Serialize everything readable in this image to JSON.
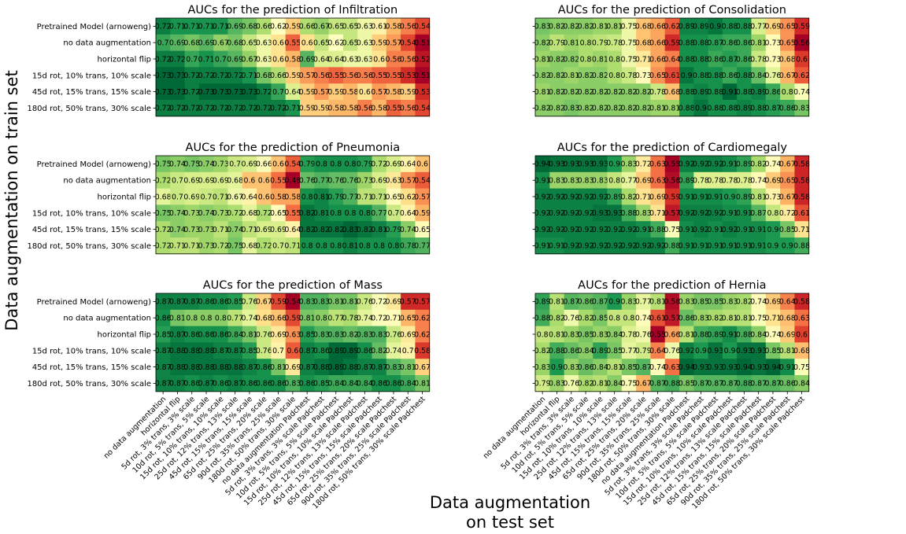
{
  "chart_data": {
    "type": "heatmap",
    "xlabel_lines": [
      "Data augmentation",
      "on test set"
    ],
    "ylabel": "Data augmentation on train set",
    "rows": [
      "Pretrained Model (arnoweng)",
      "no data augmentation",
      "horizontal flip",
      "15d rot, 10% trans, 10% scale",
      "45d rot, 15% trans, 15% scale",
      "180d rot, 50% trans, 30% scale"
    ],
    "columns": [
      "no data augmentation",
      "horizontal flip",
      "5d rot, 3% trans, 3% scale",
      "10d rot, 5% trans, 5% scale",
      "15d rot, 10% trans, 10% scale",
      "25d rot, 12% trans, 13% scale",
      "45d rot, 15% trans, 15% scale",
      "65d rot, 25% trans, 20% scale",
      "90d rot, 35% trans, 25% scale",
      "180d rot, 50% trans, 30% scale",
      "no data augmentation Padchest",
      "5d rot, 3% trans, 3% scale Padchest",
      "10d rot, 5% trans, 5% scale Padchest",
      "15d rot, 10% trans, 10% scale Padchest",
      "25d rot, 12% trans, 13% scale Padchest",
      "45d rot, 15% trans, 15% scale Padchest",
      "65d rot, 25% trans, 20% scale Padchest",
      "90d rot, 35% trans, 25% scale Padchest",
      "180d rot, 50% trans, 30% scale Padchest"
    ],
    "colormap": {
      "low": "#a50026",
      "mid": "#ffffbf",
      "high": "#006837"
    },
    "panels": [
      {
        "title": "AUCs for the prediction of Infiltration",
        "values": [
          [
            0.72,
            0.71,
            0.71,
            0.71,
            0.71,
            0.69,
            0.68,
            0.66,
            0.62,
            0.59,
            0.66,
            0.67,
            0.65,
            0.65,
            0.63,
            0.61,
            0.58,
            0.56,
            0.54
          ],
          [
            0.7,
            0.69,
            0.68,
            0.69,
            0.67,
            0.68,
            0.65,
            0.63,
            0.6,
            0.55,
            0.6,
            0.65,
            0.62,
            0.65,
            0.63,
            0.59,
            0.57,
            0.54,
            0.51
          ],
          [
            0.72,
            0.72,
            0.7,
            0.71,
            0.7,
            0.69,
            0.67,
            0.63,
            0.6,
            0.58,
            0.69,
            0.64,
            0.64,
            0.63,
            0.63,
            0.6,
            0.56,
            0.56,
            0.52
          ],
          [
            0.73,
            0.73,
            0.72,
            0.72,
            0.72,
            0.72,
            0.71,
            0.68,
            0.66,
            0.59,
            0.57,
            0.56,
            0.55,
            0.56,
            0.56,
            0.55,
            0.55,
            0.53,
            0.51
          ],
          [
            0.73,
            0.73,
            0.72,
            0.73,
            0.73,
            0.73,
            0.73,
            0.72,
            0.7,
            0.64,
            0.59,
            0.57,
            0.59,
            0.58,
            0.6,
            0.57,
            0.58,
            0.59,
            0.53
          ],
          [
            0.72,
            0.72,
            0.72,
            0.72,
            0.72,
            0.72,
            0.72,
            0.72,
            0.72,
            0.71,
            0.59,
            0.59,
            0.58,
            0.58,
            0.56,
            0.58,
            0.55,
            0.56,
            0.54
          ]
        ]
      },
      {
        "title": "AUCs for the prediction of Consolidation",
        "values": [
          [
            0.83,
            0.82,
            0.82,
            0.82,
            0.81,
            0.81,
            0.75,
            0.68,
            0.66,
            0.62,
            0.89,
            0.89,
            0.9,
            0.88,
            0.88,
            0.77,
            0.69,
            0.65,
            0.59
          ],
          [
            0.82,
            0.79,
            0.81,
            0.8,
            0.79,
            0.78,
            0.75,
            0.68,
            0.66,
            0.59,
            0.88,
            0.88,
            0.87,
            0.86,
            0.86,
            0.81,
            0.73,
            0.65,
            0.56
          ],
          [
            0.81,
            0.82,
            0.82,
            0.8,
            0.81,
            0.8,
            0.75,
            0.71,
            0.66,
            0.64,
            0.88,
            0.88,
            0.86,
            0.87,
            0.86,
            0.78,
            0.73,
            0.68,
            0.6
          ],
          [
            0.82,
            0.82,
            0.81,
            0.82,
            0.82,
            0.8,
            0.78,
            0.73,
            0.65,
            0.61,
            0.9,
            0.88,
            0.88,
            0.86,
            0.88,
            0.84,
            0.76,
            0.67,
            0.62
          ],
          [
            0.81,
            0.82,
            0.82,
            0.82,
            0.82,
            0.82,
            0.82,
            0.82,
            0.78,
            0.68,
            0.88,
            0.89,
            0.88,
            0.91,
            0.88,
            0.89,
            0.86,
            0.8,
            0.74
          ],
          [
            0.82,
            0.82,
            0.83,
            0.82,
            0.82,
            0.82,
            0.82,
            0.82,
            0.81,
            0.81,
            0.88,
            0.9,
            0.88,
            0.88,
            0.89,
            0.88,
            0.87,
            0.86,
            0.83
          ]
        ]
      },
      {
        "title": "AUCs for the prediction of Pneumonia",
        "values": [
          [
            0.75,
            0.74,
            0.75,
            0.74,
            0.73,
            0.7,
            0.69,
            0.66,
            0.6,
            0.54,
            0.79,
            0.8,
            0.8,
            0.8,
            0.79,
            0.72,
            0.69,
            0.64,
            0.6
          ],
          [
            0.72,
            0.7,
            0.69,
            0.69,
            0.69,
            0.68,
            0.6,
            0.6,
            0.55,
            0.48,
            0.76,
            0.77,
            0.76,
            0.76,
            0.73,
            0.69,
            0.63,
            0.57,
            0.54
          ],
          [
            0.68,
            0.7,
            0.69,
            0.7,
            0.71,
            0.67,
            0.64,
            0.6,
            0.58,
            0.58,
            0.8,
            0.81,
            0.79,
            0.77,
            0.71,
            0.71,
            0.65,
            0.62,
            0.57
          ],
          [
            0.75,
            0.74,
            0.73,
            0.74,
            0.73,
            0.72,
            0.68,
            0.72,
            0.65,
            0.55,
            0.82,
            0.81,
            0.8,
            0.8,
            0.8,
            0.77,
            0.7,
            0.64,
            0.59
          ],
          [
            0.72,
            0.74,
            0.73,
            0.73,
            0.71,
            0.74,
            0.71,
            0.69,
            0.69,
            0.64,
            0.82,
            0.82,
            0.82,
            0.83,
            0.82,
            0.81,
            0.79,
            0.74,
            0.65
          ],
          [
            0.72,
            0.71,
            0.71,
            0.73,
            0.72,
            0.75,
            0.68,
            0.72,
            0.7,
            0.71,
            0.8,
            0.8,
            0.8,
            0.81,
            0.8,
            0.8,
            0.8,
            0.78,
            0.77
          ]
        ]
      },
      {
        "title": "AUCs for the prediction of Cardiomegaly",
        "values": [
          [
            0.94,
            0.93,
            0.93,
            0.93,
            0.93,
            0.9,
            0.83,
            0.72,
            0.63,
            0.55,
            0.92,
            0.92,
            0.92,
            0.91,
            0.89,
            0.82,
            0.74,
            0.67,
            0.58
          ],
          [
            0.91,
            0.83,
            0.83,
            0.83,
            0.83,
            0.8,
            0.77,
            0.69,
            0.63,
            0.56,
            0.89,
            0.78,
            0.78,
            0.78,
            0.78,
            0.74,
            0.69,
            0.65,
            0.58
          ],
          [
            0.92,
            0.92,
            0.92,
            0.92,
            0.92,
            0.89,
            0.82,
            0.71,
            0.69,
            0.59,
            0.91,
            0.91,
            0.91,
            0.9,
            0.89,
            0.81,
            0.73,
            0.67,
            0.58
          ],
          [
            0.92,
            0.92,
            0.92,
            0.92,
            0.93,
            0.93,
            0.88,
            0.83,
            0.71,
            0.57,
            0.92,
            0.92,
            0.92,
            0.91,
            0.91,
            0.87,
            0.8,
            0.72,
            0.61
          ],
          [
            0.92,
            0.92,
            0.92,
            0.92,
            0.92,
            0.92,
            0.92,
            0.91,
            0.88,
            0.75,
            0.91,
            0.92,
            0.91,
            0.92,
            0.91,
            0.91,
            0.9,
            0.85,
            0.71
          ],
          [
            0.91,
            0.91,
            0.92,
            0.92,
            0.92,
            0.92,
            0.92,
            0.92,
            0.92,
            0.88,
            0.91,
            0.91,
            0.91,
            0.91,
            0.91,
            0.91,
            0.9,
            0.9,
            0.88
          ]
        ]
      },
      {
        "title": "AUCs for the prediction of Mass",
        "values": [
          [
            0.87,
            0.87,
            0.87,
            0.86,
            0.86,
            0.85,
            0.76,
            0.67,
            0.59,
            0.54,
            0.83,
            0.83,
            0.81,
            0.81,
            0.76,
            0.72,
            0.69,
            0.57,
            0.57
          ],
          [
            0.86,
            0.81,
            0.8,
            0.8,
            0.8,
            0.77,
            0.74,
            0.68,
            0.66,
            0.59,
            0.81,
            0.8,
            0.77,
            0.78,
            0.74,
            0.72,
            0.71,
            0.65,
            0.62
          ],
          [
            0.85,
            0.87,
            0.86,
            0.86,
            0.86,
            0.84,
            0.81,
            0.76,
            0.69,
            0.63,
            0.85,
            0.83,
            0.83,
            0.82,
            0.83,
            0.83,
            0.76,
            0.69,
            0.62
          ],
          [
            0.87,
            0.88,
            0.88,
            0.88,
            0.87,
            0.87,
            0.85,
            0.76,
            0.7,
            0.6,
            0.87,
            0.86,
            0.89,
            0.89,
            0.86,
            0.82,
            0.74,
            0.7,
            0.58
          ],
          [
            0.87,
            0.88,
            0.88,
            0.88,
            0.88,
            0.88,
            0.87,
            0.86,
            0.81,
            0.69,
            0.87,
            0.88,
            0.89,
            0.88,
            0.87,
            0.87,
            0.83,
            0.81,
            0.67
          ],
          [
            0.87,
            0.87,
            0.86,
            0.87,
            0.86,
            0.87,
            0.86,
            0.86,
            0.86,
            0.83,
            0.86,
            0.85,
            0.84,
            0.84,
            0.84,
            0.86,
            0.86,
            0.84,
            0.81
          ]
        ]
      },
      {
        "title": "AUCs for the prediction of Hernia",
        "values": [
          [
            0.89,
            0.81,
            0.87,
            0.86,
            0.87,
            0.9,
            0.83,
            0.77,
            0.81,
            0.56,
            0.83,
            0.85,
            0.85,
            0.83,
            0.82,
            0.74,
            0.69,
            0.64,
            0.58
          ],
          [
            0.88,
            0.82,
            0.76,
            0.82,
            0.85,
            0.8,
            0.8,
            0.74,
            0.61,
            0.57,
            0.86,
            0.83,
            0.82,
            0.81,
            0.81,
            0.75,
            0.71,
            0.68,
            0.63
          ],
          [
            0.8,
            0.81,
            0.83,
            0.85,
            0.83,
            0.84,
            0.78,
            0.76,
            0.55,
            0.66,
            0.81,
            0.88,
            0.89,
            0.91,
            0.88,
            0.84,
            0.74,
            0.69,
            0.6
          ],
          [
            0.82,
            0.88,
            0.86,
            0.84,
            0.89,
            0.85,
            0.77,
            0.79,
            0.64,
            0.76,
            0.92,
            0.9,
            0.93,
            0.9,
            0.93,
            0.93,
            0.85,
            0.81,
            0.68
          ],
          [
            0.83,
            0.9,
            0.83,
            0.86,
            0.84,
            0.81,
            0.85,
            0.87,
            0.74,
            0.63,
            0.94,
            0.93,
            0.93,
            0.93,
            0.94,
            0.93,
            0.94,
            0.91,
            0.75
          ],
          [
            0.79,
            0.83,
            0.76,
            0.82,
            0.81,
            0.84,
            0.75,
            0.67,
            0.87,
            0.88,
            0.85,
            0.87,
            0.87,
            0.87,
            0.88,
            0.87,
            0.87,
            0.86,
            0.84
          ]
        ]
      }
    ]
  }
}
